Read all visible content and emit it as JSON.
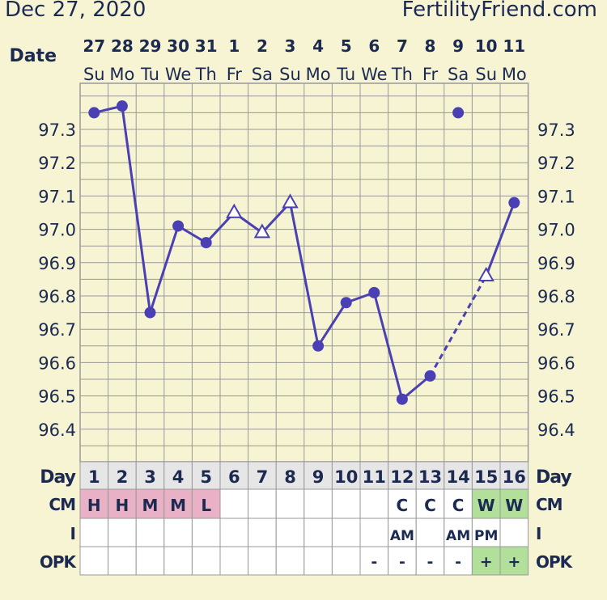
{
  "header": {
    "date": "Dec 27, 2020",
    "site": "FertilityFriend.com"
  },
  "labels": {
    "date": "Date",
    "day": "Day",
    "cm": "CM",
    "i": "I",
    "opk": "OPK"
  },
  "colors": {
    "background": "#f6f4d2",
    "grid": "#999999",
    "line": "#4a40b4",
    "text": "#1c2a52",
    "cm_pink": "#e9b1c6",
    "cm_green": "#b2e09b",
    "cell_white": "#ffffff"
  },
  "columns": [
    {
      "date": "27",
      "dow": "Su",
      "day": "1",
      "cm": "H",
      "i": "",
      "opk": ""
    },
    {
      "date": "28",
      "dow": "Mo",
      "day": "2",
      "cm": "H",
      "i": "",
      "opk": ""
    },
    {
      "date": "29",
      "dow": "Tu",
      "day": "3",
      "cm": "M",
      "i": "",
      "opk": ""
    },
    {
      "date": "30",
      "dow": "We",
      "day": "4",
      "cm": "M",
      "i": "",
      "opk": ""
    },
    {
      "date": "31",
      "dow": "Th",
      "day": "5",
      "cm": "L",
      "i": "",
      "opk": ""
    },
    {
      "date": "1",
      "dow": "Fr",
      "day": "6",
      "cm": "",
      "i": "",
      "opk": ""
    },
    {
      "date": "2",
      "dow": "Sa",
      "day": "7",
      "cm": "",
      "i": "",
      "opk": ""
    },
    {
      "date": "3",
      "dow": "Su",
      "day": "8",
      "cm": "",
      "i": "",
      "opk": ""
    },
    {
      "date": "4",
      "dow": "Mo",
      "day": "9",
      "cm": "",
      "i": "",
      "opk": ""
    },
    {
      "date": "5",
      "dow": "Tu",
      "day": "10",
      "cm": "",
      "i": "",
      "opk": ""
    },
    {
      "date": "6",
      "dow": "We",
      "day": "11",
      "cm": "",
      "i": "",
      "opk": "-"
    },
    {
      "date": "7",
      "dow": "Th",
      "day": "12",
      "cm": "C",
      "i": "AM",
      "opk": "-"
    },
    {
      "date": "8",
      "dow": "Fr",
      "day": "13",
      "cm": "C",
      "i": "",
      "opk": "-"
    },
    {
      "date": "9",
      "dow": "Sa",
      "day": "14",
      "cm": "C",
      "i": "AM",
      "opk": "-"
    },
    {
      "date": "10",
      "dow": "Su",
      "day": "15",
      "cm": "W",
      "i": "PM",
      "opk": "+"
    },
    {
      "date": "11",
      "dow": "Mo",
      "day": "16",
      "cm": "W",
      "i": "",
      "opk": "+"
    }
  ],
  "cm_colors": {
    "H": "pink",
    "M": "pink",
    "L": "pink",
    "W": "green",
    "C": "white",
    "": "white"
  },
  "opk_colors": {
    "+": "green",
    "-": "white",
    "": "white"
  },
  "chart_data": {
    "type": "line",
    "y_ticks": [
      "97.3",
      "97.2",
      "97.1",
      "97.0",
      "96.9",
      "96.8",
      "96.7",
      "96.6",
      "96.5",
      "96.4"
    ],
    "ylim": [
      96.35,
      97.4
    ],
    "x": [
      1,
      2,
      3,
      4,
      5,
      6,
      7,
      8,
      9,
      10,
      11,
      12,
      13,
      14,
      15,
      16
    ],
    "temps": [
      {
        "day": 1,
        "temp": 97.35,
        "marker": "dot"
      },
      {
        "day": 2,
        "temp": 97.37,
        "marker": "dot"
      },
      {
        "day": 3,
        "temp": 96.75,
        "marker": "dot"
      },
      {
        "day": 4,
        "temp": 97.01,
        "marker": "dot"
      },
      {
        "day": 5,
        "temp": 96.96,
        "marker": "dot"
      },
      {
        "day": 6,
        "temp": 97.05,
        "marker": "open-triangle"
      },
      {
        "day": 7,
        "temp": 96.99,
        "marker": "open-triangle"
      },
      {
        "day": 8,
        "temp": 97.08,
        "marker": "open-triangle"
      },
      {
        "day": 9,
        "temp": 96.65,
        "marker": "dot"
      },
      {
        "day": 10,
        "temp": 96.78,
        "marker": "dot"
      },
      {
        "day": 11,
        "temp": 96.81,
        "marker": "dot"
      },
      {
        "day": 12,
        "temp": 96.49,
        "marker": "dot"
      },
      {
        "day": 13,
        "temp": 96.56,
        "marker": "dot"
      },
      {
        "day": 14,
        "temp": 97.35,
        "marker": "dot",
        "excluded": true
      },
      {
        "day": 15,
        "temp": 96.86,
        "marker": "open-triangle"
      },
      {
        "day": 16,
        "temp": 97.08,
        "marker": "dot"
      }
    ],
    "segments": [
      {
        "from": 1,
        "to": 2,
        "style": "solid"
      },
      {
        "from": 2,
        "to": 3,
        "style": "solid"
      },
      {
        "from": 3,
        "to": 4,
        "style": "solid"
      },
      {
        "from": 4,
        "to": 5,
        "style": "solid"
      },
      {
        "from": 5,
        "to": 6,
        "style": "solid"
      },
      {
        "from": 6,
        "to": 7,
        "style": "solid"
      },
      {
        "from": 7,
        "to": 8,
        "style": "solid"
      },
      {
        "from": 8,
        "to": 9,
        "style": "solid"
      },
      {
        "from": 9,
        "to": 10,
        "style": "solid"
      },
      {
        "from": 10,
        "to": 11,
        "style": "solid"
      },
      {
        "from": 11,
        "to": 12,
        "style": "solid"
      },
      {
        "from": 12,
        "to": 13,
        "style": "solid"
      },
      {
        "from": 13,
        "to": 15,
        "style": "dashed"
      },
      {
        "from": 15,
        "to": 16,
        "style": "solid"
      }
    ]
  }
}
